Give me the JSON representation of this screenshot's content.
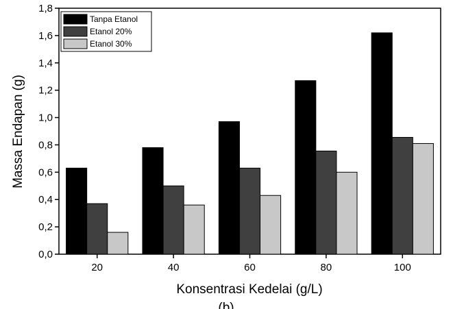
{
  "chart_data": {
    "type": "bar",
    "x_label": "Konsentrasi Kedelai (g/L)",
    "y_label": "Massa Endapan (g)",
    "caption": "(b)",
    "categories": [
      "20",
      "40",
      "60",
      "80",
      "100"
    ],
    "series": [
      {
        "name": "Tanpa Etanol",
        "color": "#000000",
        "values": [
          0.63,
          0.78,
          0.97,
          1.27,
          1.62
        ]
      },
      {
        "name": "Etanol 20%",
        "color": "#404040",
        "values": [
          0.37,
          0.5,
          0.63,
          0.755,
          0.855
        ]
      },
      {
        "name": "Etanol 30%",
        "color": "#c8c8c8",
        "values": [
          0.16,
          0.36,
          0.43,
          0.6,
          0.81
        ]
      }
    ],
    "ylim": [
      0,
      1.8
    ],
    "yticks": [
      {
        "value": 0,
        "label": "0,0"
      },
      {
        "value": 0.2,
        "label": "0,2"
      },
      {
        "value": 0.4,
        "label": "0,4"
      },
      {
        "value": 0.6,
        "label": "0,6"
      },
      {
        "value": 0.8,
        "label": "0,8"
      },
      {
        "value": 1.0,
        "label": "1,0"
      },
      {
        "value": 1.2,
        "label": "1,2"
      },
      {
        "value": 1.4,
        "label": "1,4"
      },
      {
        "value": 1.6,
        "label": "1,6"
      },
      {
        "value": 1.8,
        "label": "1,8"
      }
    ],
    "legend": "top-left"
  }
}
